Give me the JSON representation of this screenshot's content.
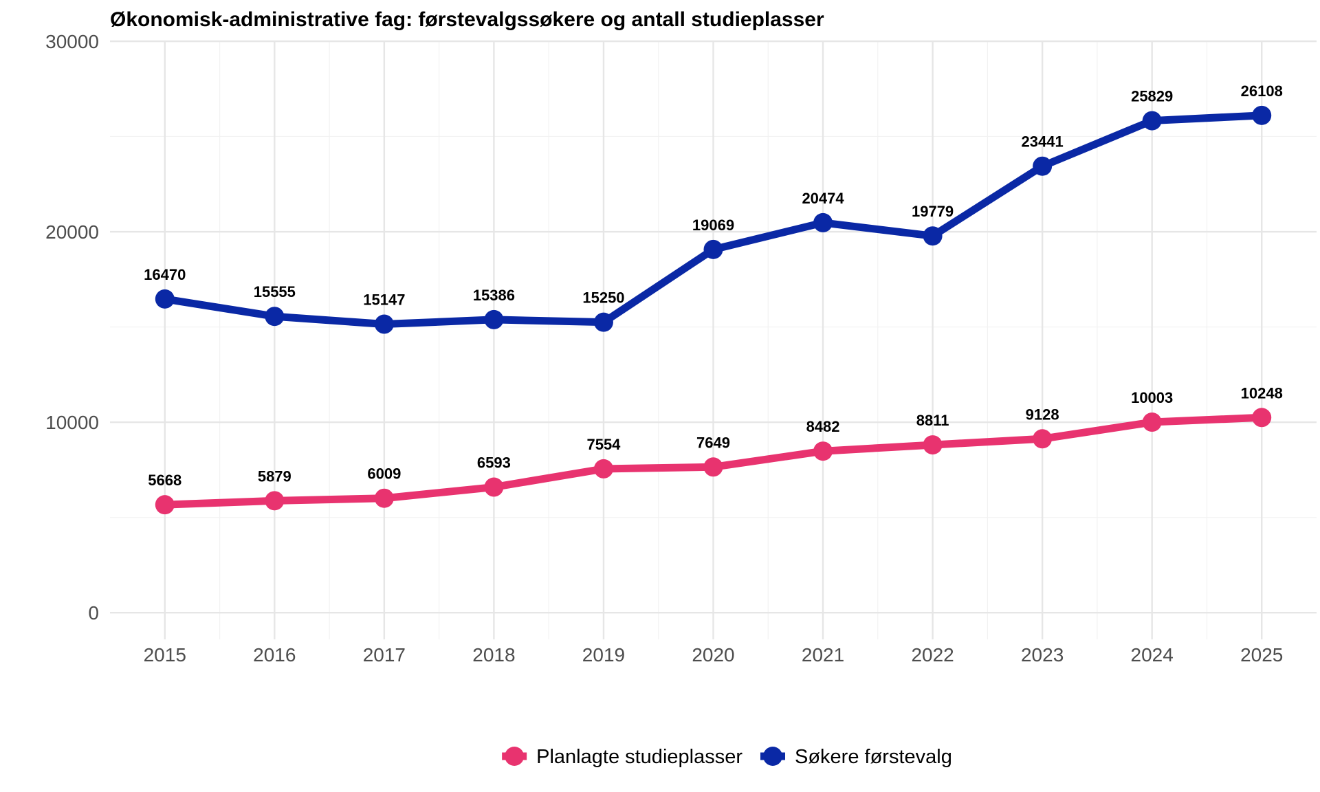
{
  "chart_data": {
    "type": "line",
    "title": "Økonomisk-administrative fag: førstevalgssøkere og antall studieplasser",
    "xlabel": "",
    "ylabel": "",
    "x": [
      2015,
      2016,
      2017,
      2018,
      2019,
      2020,
      2021,
      2022,
      2023,
      2024,
      2025
    ],
    "x_tick_labels": [
      "2015",
      "2016",
      "2017",
      "2018",
      "2019",
      "2020",
      "2021",
      "2022",
      "2023",
      "2024",
      "2025"
    ],
    "y_tick_labels": [
      "0",
      "10000",
      "20000",
      "30000"
    ],
    "y_ticks": [
      0,
      10000,
      20000,
      30000
    ],
    "ylim": [
      -1400,
      30000
    ],
    "xlim": [
      2014.5,
      2025.5
    ],
    "grid": true,
    "legend_position": "bottom",
    "series": [
      {
        "name": "Planlagte studieplasser",
        "color": "#e8336f",
        "values": [
          5668,
          5879,
          6009,
          6593,
          7554,
          7649,
          8482,
          8811,
          9128,
          10003,
          10248
        ],
        "labels": [
          "5668",
          "5879",
          "6009",
          "6593",
          "7554",
          "7649",
          "8482",
          "8811",
          "9128",
          "10003",
          "10248"
        ]
      },
      {
        "name": "Søkere førstevalg",
        "color": "#0a28a5",
        "values": [
          16470,
          15555,
          15147,
          15386,
          15250,
          19069,
          20474,
          19779,
          23441,
          25829,
          26108
        ],
        "labels": [
          "16470",
          "15555",
          "15147",
          "15386",
          "15250",
          "19069",
          "20474",
          "19779",
          "23441",
          "25829",
          "26108"
        ]
      }
    ]
  }
}
